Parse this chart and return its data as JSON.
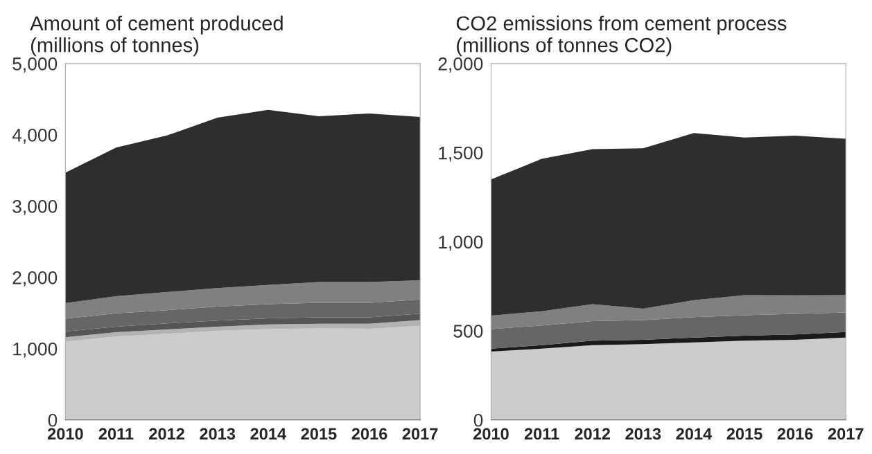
{
  "chart_data": [
    {
      "type": "area",
      "stacked": true,
      "title": "Amount of cement produced\n(millions of tonnes)",
      "categories": [
        "2010",
        "2011",
        "2012",
        "2013",
        "2014",
        "2015",
        "2016",
        "2017"
      ],
      "ylim": [
        0,
        5000
      ],
      "yticks": [
        {
          "value": 0,
          "label": "0"
        },
        {
          "value": 1000,
          "label": "1,000"
        },
        {
          "value": 2000,
          "label": "2,000"
        },
        {
          "value": 3000,
          "label": "3,000"
        },
        {
          "value": 4000,
          "label": "4,000"
        },
        {
          "value": 5000,
          "label": "5,000"
        }
      ],
      "grid": false,
      "legend": false,
      "series": [
        {
          "color": "#cccccc",
          "values": [
            1100,
            1170,
            1210,
            1250,
            1275,
            1285,
            1280,
            1320
          ]
        },
        {
          "color": "#b3b3b3",
          "values": [
            60,
            60,
            60,
            60,
            65,
            65,
            70,
            80
          ]
        },
        {
          "color": "#555555",
          "values": [
            80,
            80,
            85,
            85,
            85,
            90,
            90,
            90
          ]
        },
        {
          "color": "#666666",
          "values": [
            180,
            185,
            185,
            195,
            200,
            205,
            205,
            200
          ]
        },
        {
          "color": "#808080",
          "values": [
            220,
            240,
            255,
            260,
            270,
            290,
            290,
            270
          ]
        },
        {
          "color": "#2e2e2e",
          "values": [
            1830,
            2085,
            2195,
            2390,
            2455,
            2325,
            2365,
            2290
          ]
        }
      ]
    },
    {
      "type": "area",
      "stacked": true,
      "title": "CO2 emissions from cement process\n(millions of tonnes CO2)",
      "categories": [
        "2010",
        "2011",
        "2012",
        "2013",
        "2014",
        "2015",
        "2016",
        "2017"
      ],
      "ylim": [
        0,
        2000
      ],
      "yticks": [
        {
          "value": 0,
          "label": "0"
        },
        {
          "value": 500,
          "label": "500"
        },
        {
          "value": 1000,
          "label": "1,000"
        },
        {
          "value": 1500,
          "label": "1,500"
        },
        {
          "value": 2000,
          "label": "2,000"
        }
      ],
      "grid": false,
      "legend": false,
      "series": [
        {
          "color": "#cccccc",
          "values": [
            384,
            400,
            420,
            425,
            435,
            445,
            450,
            462
          ]
        },
        {
          "color": "#1a1a1a",
          "values": [
            16,
            20,
            25,
            25,
            27,
            28,
            30,
            31
          ]
        },
        {
          "color": "#666666",
          "values": [
            110,
            110,
            110,
            110,
            115,
            115,
            115,
            110
          ]
        },
        {
          "color": "#808080",
          "values": [
            76,
            80,
            95,
            65,
            95,
            112,
            104,
            97
          ]
        },
        {
          "color": "#2e2e2e",
          "values": [
            764,
            855,
            870,
            900,
            938,
            885,
            896,
            878
          ]
        }
      ]
    }
  ]
}
